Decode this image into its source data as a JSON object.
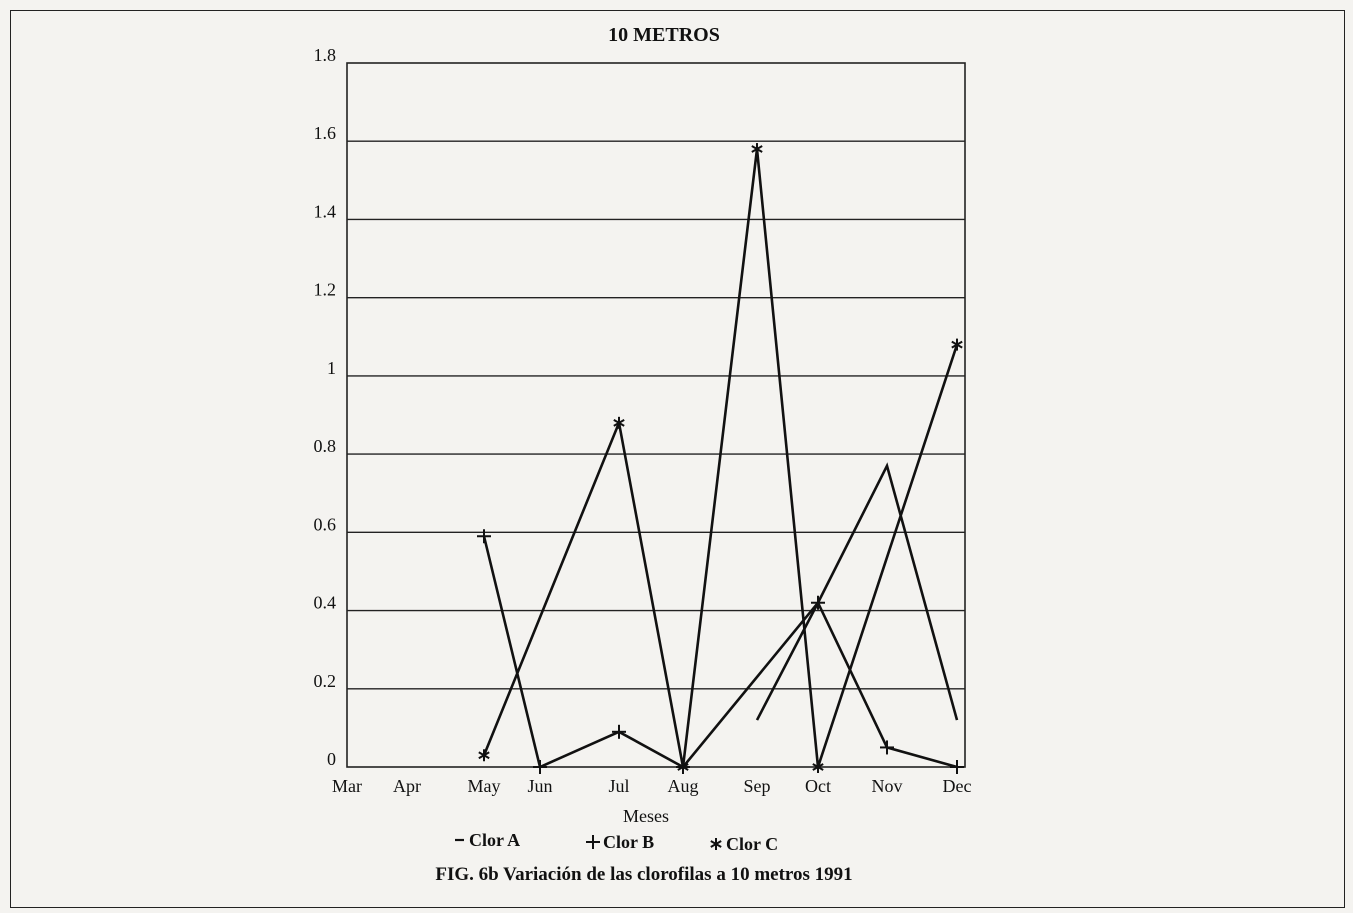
{
  "chart_data": {
    "type": "line",
    "title": "10 METROS",
    "xlabel": "Meses",
    "ylabel": "",
    "categories": [
      "Mar",
      "Apr",
      "May",
      "Jun",
      "Jul",
      "Aug",
      "Sep",
      "Oct",
      "Nov",
      "Dec"
    ],
    "y_ticks": [
      "0",
      "0.2",
      "0.4",
      "0.6",
      "0.8",
      "1",
      "1.2",
      "1.4",
      "1.6",
      "1.8"
    ],
    "ylim": [
      0,
      1.8
    ],
    "grid": true,
    "legend_position": "bottom",
    "series": [
      {
        "name": "Clor A",
        "marker": "—",
        "values": [
          null,
          null,
          null,
          null,
          null,
          null,
          0.12,
          0.42,
          0.77,
          0.12
        ]
      },
      {
        "name": "Clor B",
        "marker": "+",
        "values": [
          null,
          null,
          0.59,
          0.0,
          0.09,
          0.0,
          null,
          0.42,
          0.05,
          0.0
        ]
      },
      {
        "name": "Clor C",
        "marker": "*",
        "values": [
          null,
          null,
          0.03,
          null,
          0.88,
          0.0,
          1.58,
          0.0,
          null,
          1.08
        ]
      }
    ]
  },
  "caption": "FIG. 6b Variación de las clorofilas a 10 metros 1991"
}
